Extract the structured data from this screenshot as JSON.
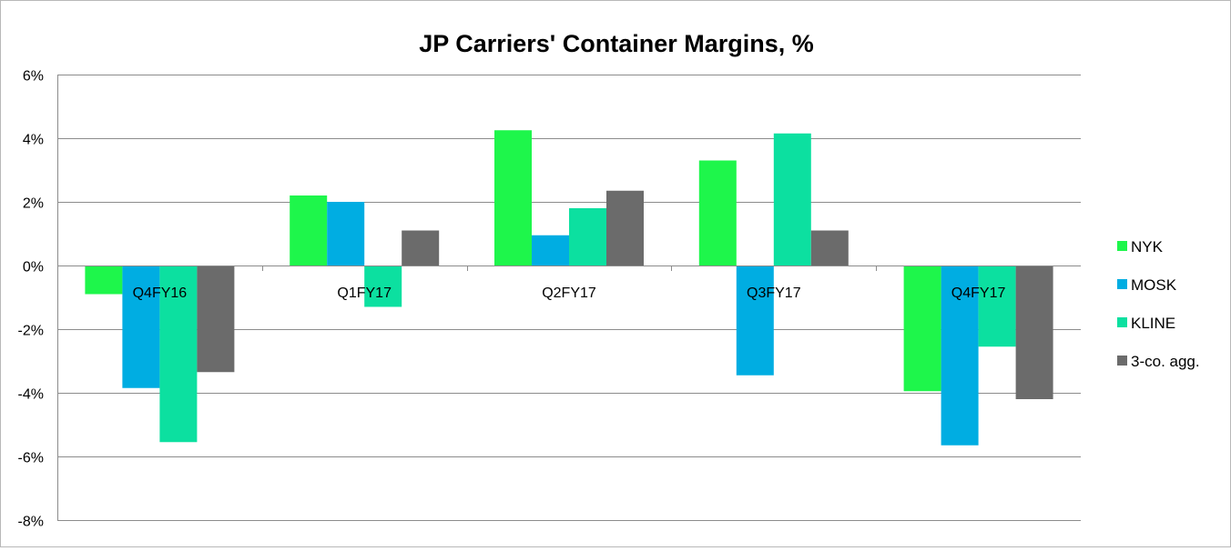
{
  "chart_data": {
    "type": "bar",
    "title": "JP Carriers' Container Margins, %",
    "xlabel": "",
    "ylabel": "",
    "categories": [
      "Q4FY16",
      "Q1FY17",
      "Q2FY17",
      "Q3FY17",
      "Q4FY17"
    ],
    "ylim": [
      -8,
      6
    ],
    "yticks": [
      6,
      4,
      2,
      0,
      -2,
      -4,
      -6,
      -8
    ],
    "ytick_labels": [
      "6%",
      "4%",
      "2%",
      "0%",
      "-2%",
      "-4%",
      "-6%",
      "-8%"
    ],
    "grid": true,
    "legend_position": "right",
    "series": [
      {
        "name": "NYK",
        "color": "#1ef64b",
        "values": [
          -0.9,
          2.2,
          4.25,
          3.3,
          -3.95
        ]
      },
      {
        "name": "MOSK",
        "color": "#00ade2",
        "values": [
          -3.85,
          2.0,
          0.95,
          -3.45,
          -5.65
        ]
      },
      {
        "name": "KLINE",
        "color": "#0ce0a0",
        "values": [
          -5.55,
          -1.3,
          1.8,
          4.15,
          -2.55
        ]
      },
      {
        "name": "3-co. agg.",
        "color": "#6b6b6b",
        "values": [
          -3.35,
          1.1,
          2.35,
          1.1,
          -4.2
        ]
      }
    ]
  }
}
